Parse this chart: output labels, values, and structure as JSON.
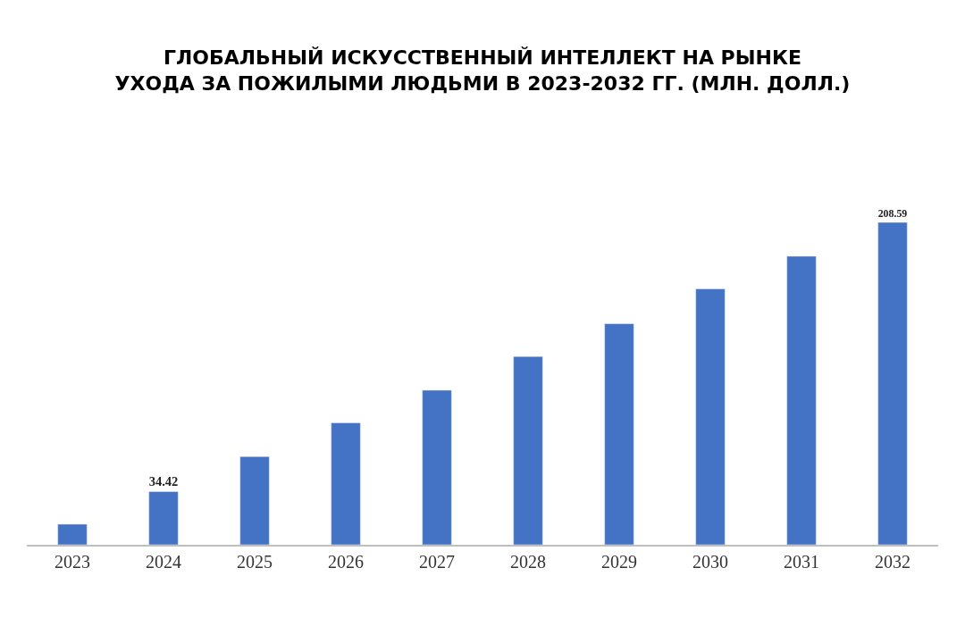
{
  "chart_data": {
    "type": "bar",
    "title": "ГЛОБАЛЬНЫЙ ИСКУССТВЕННЫЙ ИНТЕЛЛЕКТ НА РЫНКЕ\nУХОДА ЗА ПОЖИЛЫМИ ЛЮДЬМИ В 2023-2032 ГГ. (МЛН. ДОЛЛ.)",
    "categories": [
      "2023",
      "2024",
      "2025",
      "2026",
      "2027",
      "2028",
      "2029",
      "2030",
      "2031",
      "2032"
    ],
    "values": [
      13.3,
      34.42,
      57.0,
      78.9,
      100.0,
      121.8,
      143.0,
      165.6,
      186.7,
      208.59
    ],
    "value_labels": [
      null,
      "34.42",
      null,
      null,
      null,
      null,
      null,
      null,
      null,
      "208.59"
    ],
    "color": "#4472c4",
    "tick_labels": "x"
  }
}
